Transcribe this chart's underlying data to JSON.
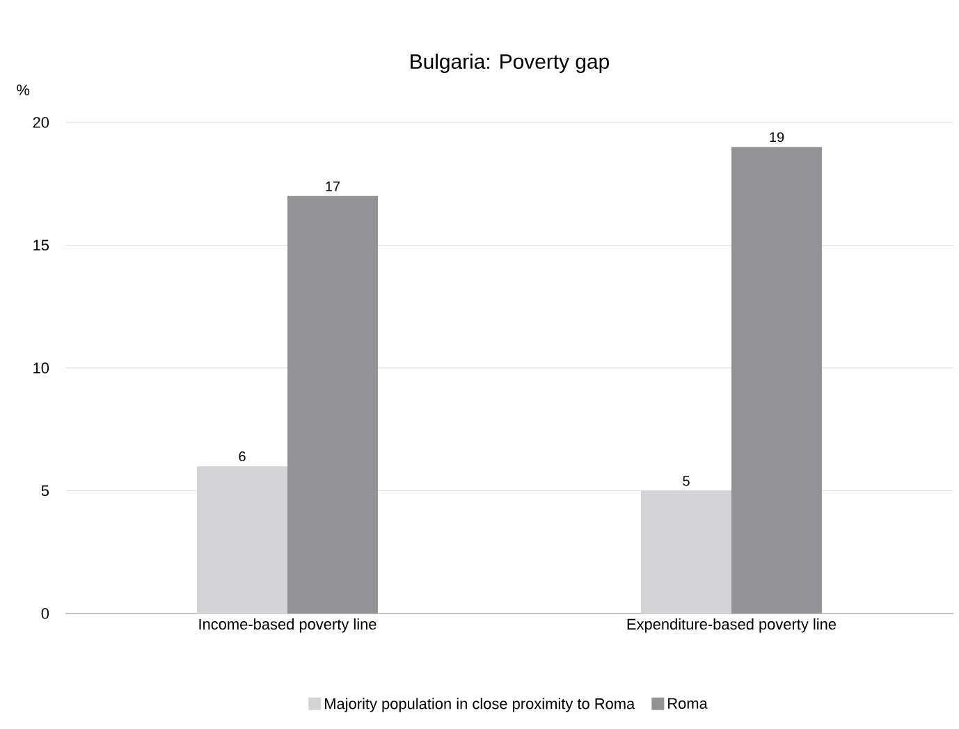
{
  "chart_data": {
    "type": "bar",
    "title": "Bulgaria: Poverty gap",
    "ylabel": "%",
    "categories": [
      "Income-based poverty line",
      "Expenditure-based poverty line"
    ],
    "series": [
      {
        "name": "Majority population in close proximity to Roma",
        "color": "#d4d4d6",
        "values": [
          6,
          5
        ]
      },
      {
        "name": "Roma",
        "color": "#939396",
        "values": [
          17,
          19
        ]
      }
    ],
    "ylim": [
      0,
      20
    ],
    "yticks": [
      0,
      5,
      10,
      15,
      20
    ],
    "grid": "y",
    "legend": "bottom",
    "data_labels": true
  }
}
